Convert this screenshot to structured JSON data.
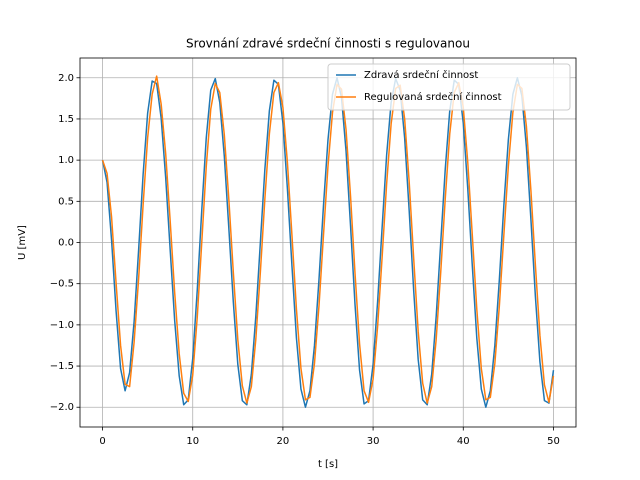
{
  "chart_data": {
    "type": "line",
    "title": "Srovnání zdravé srdeční činnosti s regulovanou",
    "xlabel": "t [s]",
    "ylabel": "U [mV]",
    "x": [
      0,
      0.5,
      1,
      1.5,
      2,
      2.5,
      3,
      3.5,
      4,
      4.5,
      5,
      5.5,
      6,
      6.5,
      7,
      7.5,
      8,
      8.5,
      9,
      9.5,
      10,
      10.5,
      11,
      11.5,
      12,
      12.5,
      13,
      13.5,
      14,
      14.5,
      15,
      15.5,
      16,
      16.5,
      17,
      17.5,
      18,
      18.5,
      19,
      19.5,
      20,
      20.5,
      21,
      21.5,
      22,
      22.5,
      23,
      23.5,
      24,
      24.5,
      25,
      25.5,
      26,
      26.5,
      27,
      27.5,
      28,
      28.5,
      29,
      29.5,
      30,
      30.5,
      31,
      31.5,
      32,
      32.5,
      33,
      33.5,
      34,
      34.5,
      35,
      35.5,
      36,
      36.5,
      37,
      37.5,
      38,
      38.5,
      39,
      39.5,
      40,
      40.5,
      41,
      41.5,
      42,
      42.5,
      43,
      43.5,
      44,
      44.5,
      45,
      45.5,
      46,
      46.5,
      47,
      47.5,
      48,
      48.5,
      49,
      49.5,
      50
    ],
    "series": [
      {
        "name": "Zdravá srdeční činnost",
        "color": "#1f77b4",
        "values": [
          1.0,
          0.73,
          0.03,
          -0.83,
          -1.53,
          -1.8,
          -1.58,
          -0.96,
          -0.09,
          0.83,
          1.57,
          1.96,
          1.93,
          1.51,
          0.79,
          -0.09,
          -0.95,
          -1.62,
          -1.97,
          -1.91,
          -1.41,
          -0.58,
          0.39,
          1.27,
          1.85,
          1.99,
          1.7,
          1.05,
          0.18,
          -0.72,
          -1.48,
          -1.92,
          -1.97,
          -1.6,
          -0.89,
          0.0,
          0.89,
          1.6,
          1.97,
          1.92,
          1.45,
          0.65,
          -0.28,
          -1.16,
          -1.78,
          -2.0,
          -1.8,
          -1.25,
          -0.45,
          0.45,
          1.25,
          1.8,
          2.0,
          1.76,
          1.11,
          0.2,
          -0.76,
          -1.55,
          -1.96,
          -1.92,
          -1.48,
          -0.72,
          0.18,
          1.06,
          1.7,
          1.99,
          1.85,
          1.27,
          0.39,
          -0.58,
          -1.42,
          -1.91,
          -1.97,
          -1.6,
          -0.89,
          0.0,
          0.89,
          1.6,
          1.97,
          1.92,
          1.45,
          0.65,
          -0.28,
          -1.16,
          -1.78,
          -2.0,
          -1.8,
          -1.25,
          -0.45,
          0.45,
          1.25,
          1.8,
          2.0,
          1.78,
          1.16,
          0.28,
          -0.66,
          -1.45,
          -1.92,
          -1.95,
          -1.55
        ]
      },
      {
        "name": "Regulovaná srdeční činnost",
        "color": "#ff7f0e",
        "values": [
          1.0,
          0.84,
          0.31,
          -0.49,
          -1.25,
          -1.72,
          -1.75,
          -1.21,
          -0.44,
          0.46,
          1.27,
          1.8,
          2.02,
          1.68,
          1.08,
          0.26,
          -0.61,
          -1.35,
          -1.83,
          -1.93,
          -1.61,
          -0.91,
          0.0,
          0.92,
          1.62,
          1.93,
          1.82,
          1.31,
          0.53,
          -0.36,
          -1.18,
          -1.74,
          -1.95,
          -1.75,
          -1.17,
          -0.36,
          0.53,
          1.32,
          1.82,
          1.94,
          1.64,
          0.97,
          0.09,
          -0.81,
          -1.53,
          -1.91,
          -1.88,
          -1.47,
          -0.77,
          0.09,
          0.93,
          1.58,
          1.92,
          1.86,
          1.37,
          0.56,
          -0.38,
          -1.23,
          -1.8,
          -1.94,
          -1.66,
          -1.02,
          -0.18,
          0.71,
          1.44,
          1.87,
          1.91,
          1.5,
          0.74,
          -0.19,
          -1.08,
          -1.71,
          -1.95,
          -1.75,
          -1.17,
          -0.36,
          0.53,
          1.32,
          1.82,
          1.94,
          1.64,
          0.97,
          0.09,
          -0.81,
          -1.53,
          -1.91,
          -1.88,
          -1.47,
          -0.77,
          0.09,
          0.93,
          1.58,
          1.92,
          1.87,
          1.41,
          0.63,
          -0.28,
          -1.13,
          -1.73,
          -1.94,
          -1.62
        ]
      }
    ],
    "xlim": [
      -2.5,
      52.5
    ],
    "xticks": [
      0,
      10,
      20,
      30,
      40,
      50
    ],
    "ylim": [
      -2.24,
      2.24
    ],
    "yticks": [
      {
        "value": -2,
        "label": "−2.0"
      },
      {
        "value": -1.5,
        "label": "−1.5"
      },
      {
        "value": -1,
        "label": "−1.0"
      },
      {
        "value": -0.5,
        "label": "−0.5"
      },
      {
        "value": 0,
        "label": "0.0"
      },
      {
        "value": 0.5,
        "label": "0.5"
      },
      {
        "value": 1,
        "label": "1.0"
      },
      {
        "value": 1.5,
        "label": "1.5"
      },
      {
        "value": 2,
        "label": "2.0"
      }
    ],
    "grid": true,
    "legend": "upper right"
  }
}
